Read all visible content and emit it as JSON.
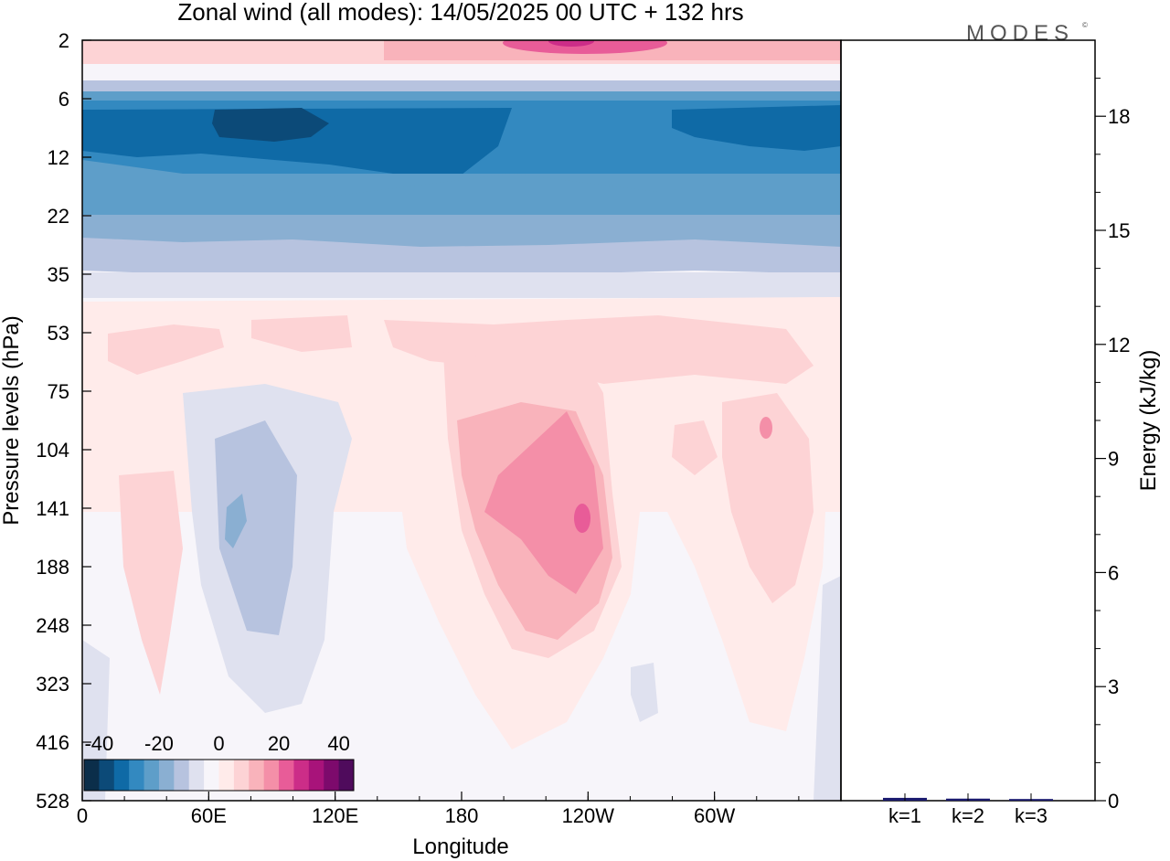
{
  "header": {
    "title": "Zonal wind (all modes):  14/05/2025  00 UTC  + 132 hrs",
    "logo": "MODES"
  },
  "chart_data": [
    {
      "type": "heatmap",
      "name": "zonal-wind-longitude-pressure-section",
      "xlabel": "Longitude",
      "ylabel": "Pressure levels (hPa)",
      "x_ticks": [
        "0",
        "60E",
        "120E",
        "180",
        "120W",
        "60W"
      ],
      "y_ticks": [
        "2",
        "6",
        "12",
        "22",
        "35",
        "53",
        "75",
        "104",
        "141",
        "188",
        "248",
        "323",
        "416",
        "528"
      ],
      "colorbar": {
        "tick_labels": [
          "-40",
          "-20",
          "0",
          "20",
          "40"
        ],
        "range": [
          -45,
          45
        ],
        "step": 5,
        "colors": [
          "#0b2e4a",
          "#0c4a78",
          "#0f6aa6",
          "#3389c0",
          "#5e9ec9",
          "#8aafd2",
          "#b7c3df",
          "#dfe1ef",
          "#f7f5fa",
          "#ffebea",
          "#fdd3d5",
          "#f9b3bb",
          "#f48fa8",
          "#e85c98",
          "#cc2d88",
          "#a8137a",
          "#7d0a6c",
          "#4f0b5c"
        ]
      },
      "bands": [
        {
          "from_level": "2",
          "to_level": "6",
          "value": 20,
          "note": "pink band near top, strongest 120W"
        },
        {
          "from_level": "6",
          "to_level": "12",
          "value": -32
        },
        {
          "from_level": "12",
          "to_level": "22",
          "value": -22
        },
        {
          "from_level": "22",
          "to_level": "35",
          "value": -10
        },
        {
          "from_level": "35",
          "to_level": "53",
          "value": 2
        },
        {
          "from_level": "53",
          "to_level": "528",
          "value": 4
        }
      ],
      "features": [
        {
          "label": "westerly max",
          "lon_range": [
            "180",
            "120W"
          ],
          "level": "141",
          "value": 25
        },
        {
          "label": "easterly region",
          "lon_range": [
            "60E",
            "120E"
          ],
          "level": "141",
          "value": -10
        }
      ]
    },
    {
      "type": "bar",
      "name": "energy-by-wavenumber",
      "categories": [
        "k=1",
        "k=2",
        "k=3"
      ],
      "values": [
        0.05,
        0.03,
        0.02
      ],
      "ylabel": "Energy (kJ/kg)",
      "ylim": [
        0,
        20
      ],
      "y_ticks": [
        "0",
        "3",
        "6",
        "9",
        "12",
        "15",
        "18"
      ],
      "color": "#1a1a6e"
    }
  ]
}
